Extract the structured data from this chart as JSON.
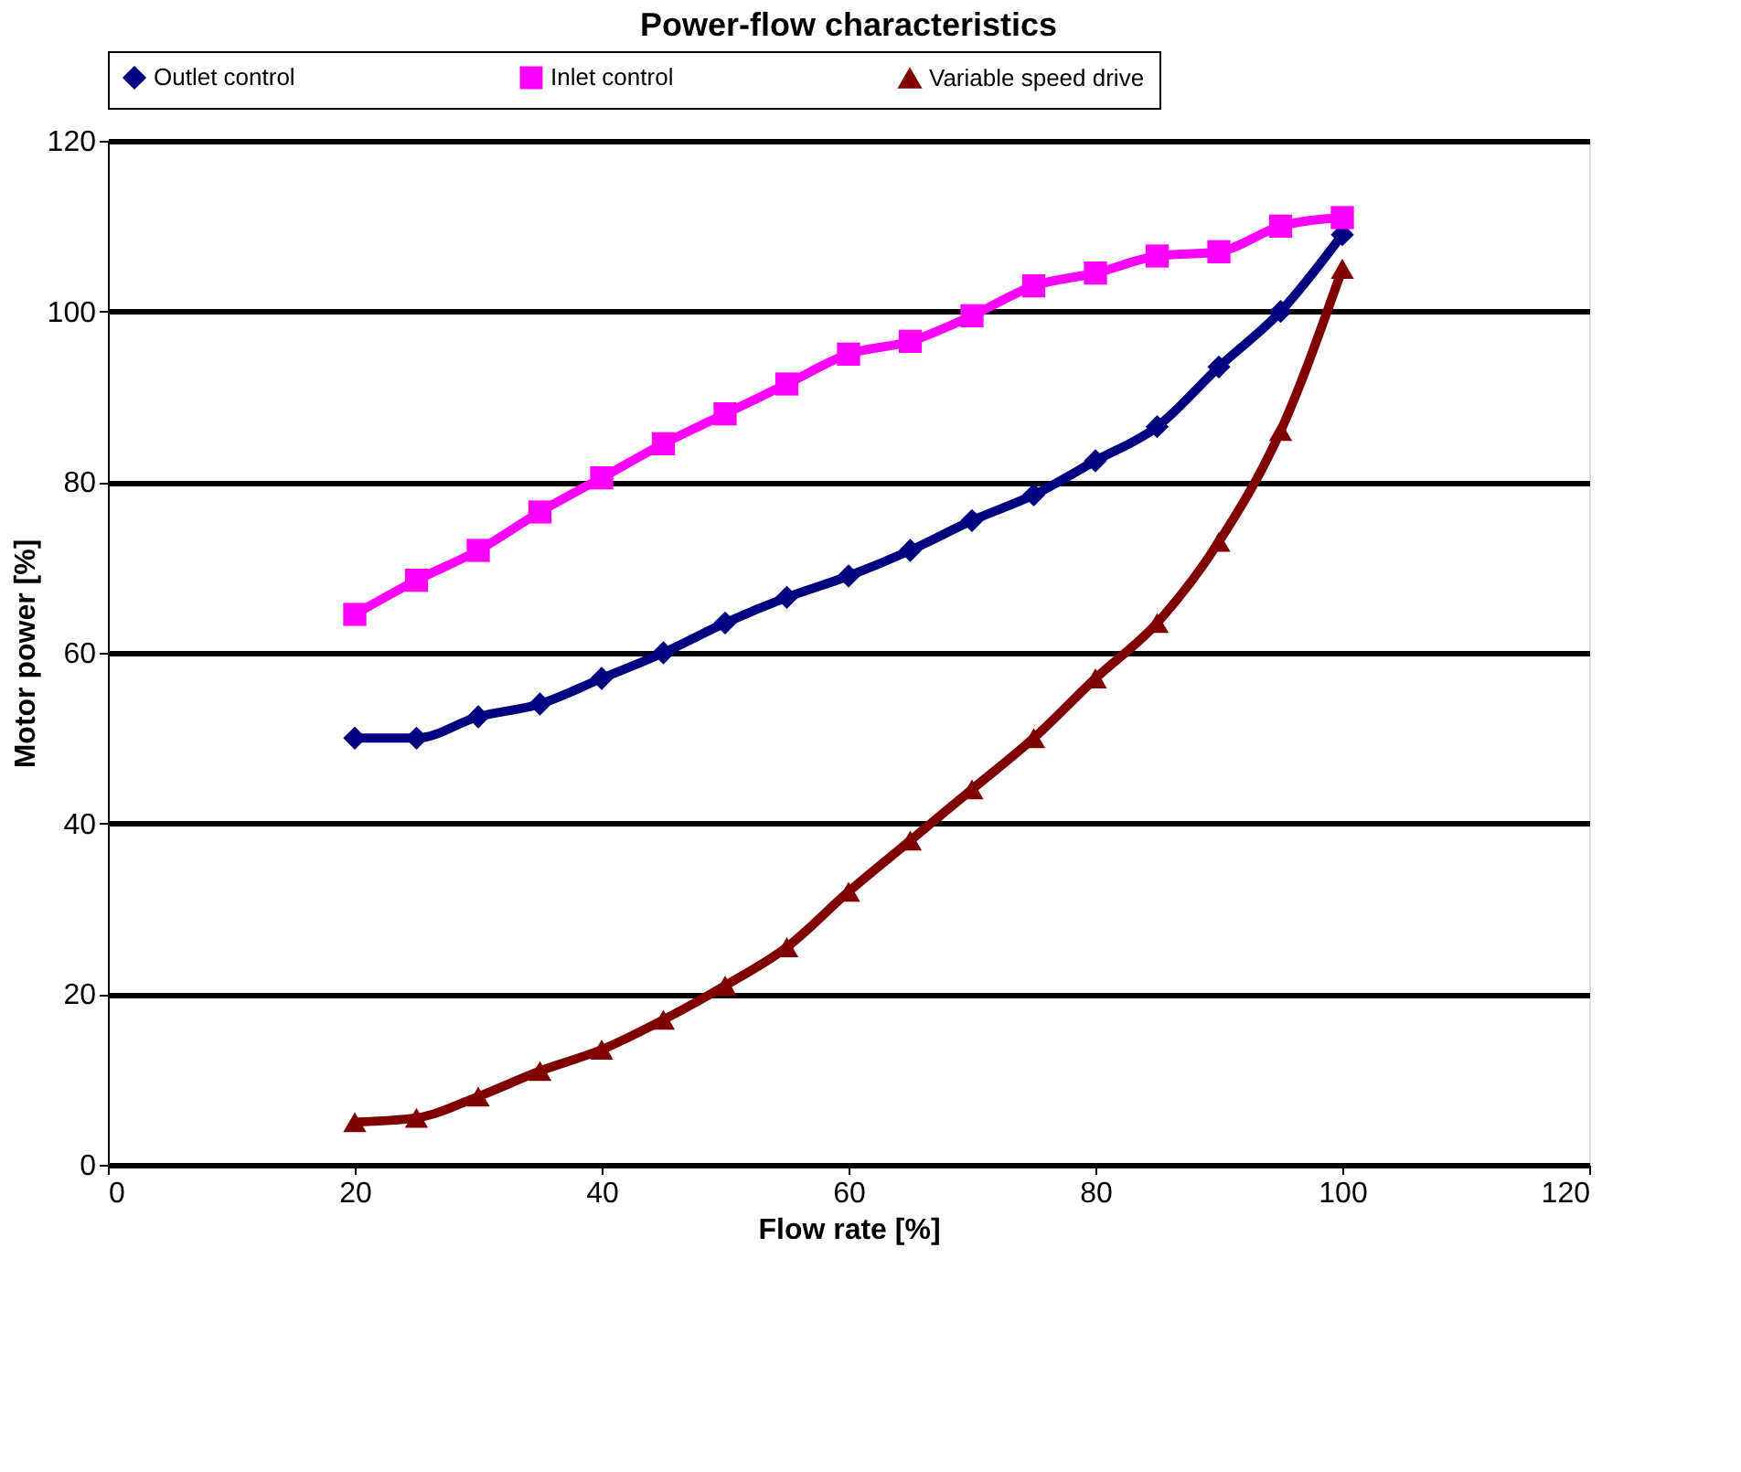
{
  "chart_data": {
    "type": "line",
    "title": "Power-flow characteristics",
    "xlabel": "Flow rate [%]",
    "ylabel": "Motor power [%]",
    "x": [
      20,
      25,
      30,
      35,
      40,
      45,
      50,
      55,
      60,
      65,
      70,
      75,
      80,
      85,
      90,
      95,
      100
    ],
    "series": [
      {
        "name": "Outlet control",
        "color": "#000080",
        "marker": "diamond",
        "values": [
          50,
          50,
          52.5,
          54,
          57,
          60,
          63.5,
          66.5,
          69,
          72,
          75.5,
          78.5,
          82.5,
          86.5,
          93.5,
          100,
          109
        ]
      },
      {
        "name": "Inlet control",
        "color": "#ff00ff",
        "marker": "square",
        "values": [
          64.5,
          68.5,
          72,
          76.5,
          80.5,
          84.5,
          88,
          91.5,
          95,
          96.5,
          99.5,
          103,
          104.5,
          106.5,
          107,
          110,
          111
        ]
      },
      {
        "name": "Variable speed drive",
        "color": "#800000",
        "marker": "triangle",
        "values": [
          5,
          5.5,
          8,
          11,
          13.5,
          17,
          21,
          25.5,
          32,
          38,
          44,
          50,
          57,
          63.5,
          73,
          86,
          105
        ]
      }
    ],
    "xlim": [
      0,
      120
    ],
    "xticks": [
      0,
      20,
      40,
      60,
      80,
      100,
      120
    ],
    "ylim": [
      0,
      120
    ],
    "yticks": [
      0,
      20,
      40,
      60,
      80,
      100,
      120
    ],
    "grid": "y",
    "legend": "top",
    "line_style": "solid"
  }
}
